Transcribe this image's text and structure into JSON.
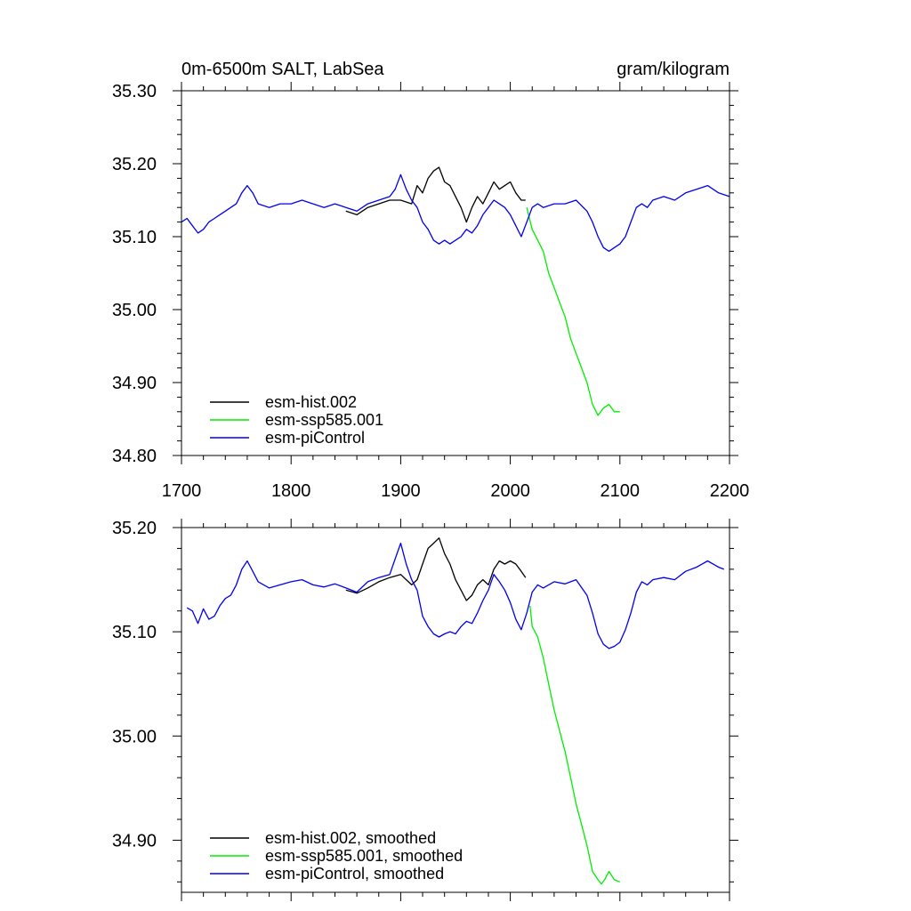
{
  "chart_data": [
    {
      "type": "line",
      "title_left": "0m-6500m SALT, LabSea",
      "title_right": "gram/kilogram",
      "xlabel": "",
      "ylabel": "",
      "xlim": [
        1700,
        2200
      ],
      "ylim": [
        34.8,
        35.3
      ],
      "x_ticks": [
        1700,
        1800,
        1900,
        2000,
        2100,
        2200
      ],
      "x_tick_labels": [
        "1700",
        "1800",
        "1900",
        "2000",
        "2100",
        "2200"
      ],
      "y_ticks": [
        34.8,
        34.9,
        35.0,
        35.1,
        35.2,
        35.3
      ],
      "y_tick_labels": [
        "34.80",
        "34.90",
        "35.00",
        "35.10",
        "35.20",
        "35.30"
      ],
      "legend_position": "bottom-left",
      "grid": false,
      "series": [
        {
          "name": "esm-hist.002",
          "color": "#000000",
          "x": [
            1850,
            1860,
            1870,
            1880,
            1890,
            1900,
            1910,
            1915,
            1920,
            1925,
            1930,
            1935,
            1940,
            1945,
            1950,
            1955,
            1960,
            1965,
            1970,
            1975,
            1980,
            1985,
            1990,
            1995,
            2000,
            2005,
            2010,
            2014
          ],
          "y": [
            35.135,
            35.13,
            35.14,
            35.145,
            35.15,
            35.15,
            35.145,
            35.17,
            35.16,
            35.18,
            35.19,
            35.195,
            35.175,
            35.17,
            35.155,
            35.14,
            35.12,
            35.14,
            35.155,
            35.145,
            35.16,
            35.175,
            35.165,
            35.17,
            35.175,
            35.16,
            35.15,
            35.15
          ]
        },
        {
          "name": "esm-ssp585.001",
          "color": "#00ee00",
          "x": [
            2015,
            2020,
            2025,
            2030,
            2035,
            2040,
            2045,
            2050,
            2055,
            2060,
            2065,
            2070,
            2075,
            2080,
            2085,
            2090,
            2095,
            2100
          ],
          "y": [
            35.14,
            35.11,
            35.095,
            35.08,
            35.05,
            35.03,
            35.01,
            34.99,
            34.96,
            34.94,
            34.92,
            34.9,
            34.87,
            34.855,
            34.865,
            34.87,
            34.86,
            34.86
          ]
        },
        {
          "name": "esm-piControl",
          "color": "#0000ee",
          "x": [
            1700,
            1705,
            1710,
            1715,
            1720,
            1725,
            1730,
            1735,
            1740,
            1745,
            1750,
            1755,
            1760,
            1765,
            1770,
            1780,
            1790,
            1800,
            1810,
            1820,
            1830,
            1840,
            1850,
            1860,
            1870,
            1880,
            1890,
            1895,
            1900,
            1905,
            1910,
            1915,
            1920,
            1925,
            1930,
            1935,
            1940,
            1945,
            1950,
            1955,
            1960,
            1965,
            1970,
            1975,
            1980,
            1985,
            1990,
            1995,
            2000,
            2005,
            2010,
            2015,
            2020,
            2025,
            2030,
            2040,
            2050,
            2060,
            2070,
            2075,
            2080,
            2085,
            2090,
            2095,
            2100,
            2105,
            2110,
            2115,
            2120,
            2125,
            2130,
            2140,
            2150,
            2160,
            2170,
            2180,
            2190,
            2200
          ],
          "y": [
            35.12,
            35.125,
            35.115,
            35.105,
            35.11,
            35.12,
            35.125,
            35.13,
            35.135,
            35.14,
            35.145,
            35.16,
            35.17,
            35.16,
            35.145,
            35.14,
            35.145,
            35.145,
            35.15,
            35.145,
            35.14,
            35.145,
            35.14,
            35.135,
            35.145,
            35.15,
            35.155,
            35.165,
            35.185,
            35.165,
            35.15,
            35.14,
            35.12,
            35.11,
            35.095,
            35.09,
            35.095,
            35.09,
            35.095,
            35.1,
            35.11,
            35.105,
            35.115,
            35.13,
            35.14,
            35.15,
            35.145,
            35.14,
            35.13,
            35.115,
            35.1,
            35.12,
            35.14,
            35.145,
            35.14,
            35.145,
            35.145,
            35.15,
            35.135,
            35.12,
            35.1,
            35.085,
            35.08,
            35.085,
            35.09,
            35.1,
            35.12,
            35.14,
            35.145,
            35.14,
            35.15,
            35.155,
            35.15,
            35.16,
            35.165,
            35.17,
            35.16,
            35.155
          ]
        }
      ]
    },
    {
      "type": "line",
      "title_left": "",
      "title_right": "",
      "xlabel": "",
      "ylabel": "",
      "xlim": [
        1700,
        2200
      ],
      "ylim": [
        34.85,
        35.2
      ],
      "x_ticks": [
        1700,
        1800,
        1900,
        2000,
        2100,
        2200
      ],
      "y_ticks": [
        34.9,
        35.0,
        35.1,
        35.2
      ],
      "y_tick_labels": [
        "34.90",
        "35.00",
        "35.10",
        "35.20"
      ],
      "legend_position": "bottom-left",
      "grid": false,
      "series": [
        {
          "name": "esm-hist.002, smoothed",
          "color": "#000000",
          "x": [
            1850,
            1860,
            1870,
            1880,
            1890,
            1900,
            1905,
            1910,
            1915,
            1920,
            1925,
            1930,
            1935,
            1940,
            1945,
            1950,
            1955,
            1960,
            1965,
            1970,
            1975,
            1980,
            1985,
            1990,
            1995,
            2000,
            2005,
            2010,
            2014
          ],
          "y": [
            35.14,
            35.137,
            35.142,
            35.148,
            35.152,
            35.155,
            35.15,
            35.145,
            35.15,
            35.165,
            35.18,
            35.185,
            35.19,
            35.175,
            35.165,
            35.15,
            35.14,
            35.13,
            35.135,
            35.145,
            35.15,
            35.145,
            35.16,
            35.168,
            35.165,
            35.168,
            35.165,
            35.158,
            35.152
          ]
        },
        {
          "name": "esm-ssp585.001, smoothed",
          "color": "#00ee00",
          "x": [
            2018,
            2020,
            2025,
            2030,
            2035,
            2040,
            2045,
            2050,
            2055,
            2060,
            2065,
            2070,
            2075,
            2080,
            2083,
            2086,
            2090,
            2095,
            2100
          ],
          "y": [
            35.125,
            35.105,
            35.095,
            35.075,
            35.05,
            35.025,
            35.005,
            34.985,
            34.96,
            34.935,
            34.915,
            34.895,
            34.87,
            34.862,
            34.858,
            34.862,
            34.87,
            34.862,
            34.86
          ]
        },
        {
          "name": "esm-piControl, smoothed",
          "color": "#0000ee",
          "x": [
            1705,
            1710,
            1715,
            1720,
            1725,
            1730,
            1735,
            1740,
            1745,
            1750,
            1755,
            1760,
            1765,
            1770,
            1780,
            1790,
            1800,
            1810,
            1820,
            1830,
            1840,
            1850,
            1860,
            1870,
            1880,
            1890,
            1895,
            1900,
            1905,
            1910,
            1915,
            1920,
            1925,
            1930,
            1935,
            1940,
            1945,
            1950,
            1955,
            1960,
            1965,
            1970,
            1975,
            1980,
            1985,
            1990,
            1995,
            2000,
            2005,
            2010,
            2015,
            2020,
            2025,
            2030,
            2040,
            2050,
            2060,
            2070,
            2075,
            2080,
            2085,
            2090,
            2095,
            2100,
            2105,
            2110,
            2115,
            2120,
            2125,
            2130,
            2140,
            2150,
            2160,
            2170,
            2180,
            2190,
            2195
          ],
          "y": [
            35.123,
            35.12,
            35.108,
            35.122,
            35.112,
            35.115,
            35.125,
            35.132,
            35.135,
            35.145,
            35.16,
            35.168,
            35.158,
            35.148,
            35.142,
            35.145,
            35.148,
            35.15,
            35.145,
            35.143,
            35.146,
            35.142,
            35.138,
            35.148,
            35.152,
            35.155,
            35.17,
            35.185,
            35.165,
            35.15,
            35.14,
            35.115,
            35.105,
            35.098,
            35.095,
            35.098,
            35.1,
            35.098,
            35.105,
            35.11,
            35.108,
            35.118,
            35.13,
            35.14,
            35.155,
            35.148,
            35.14,
            35.128,
            35.112,
            35.102,
            35.118,
            35.138,
            35.145,
            35.142,
            35.148,
            35.146,
            35.15,
            35.135,
            35.118,
            35.098,
            35.088,
            35.084,
            35.086,
            35.09,
            35.102,
            35.118,
            35.138,
            35.148,
            35.145,
            35.15,
            35.152,
            35.15,
            35.158,
            35.162,
            35.168,
            35.162,
            35.16
          ]
        }
      ]
    }
  ]
}
